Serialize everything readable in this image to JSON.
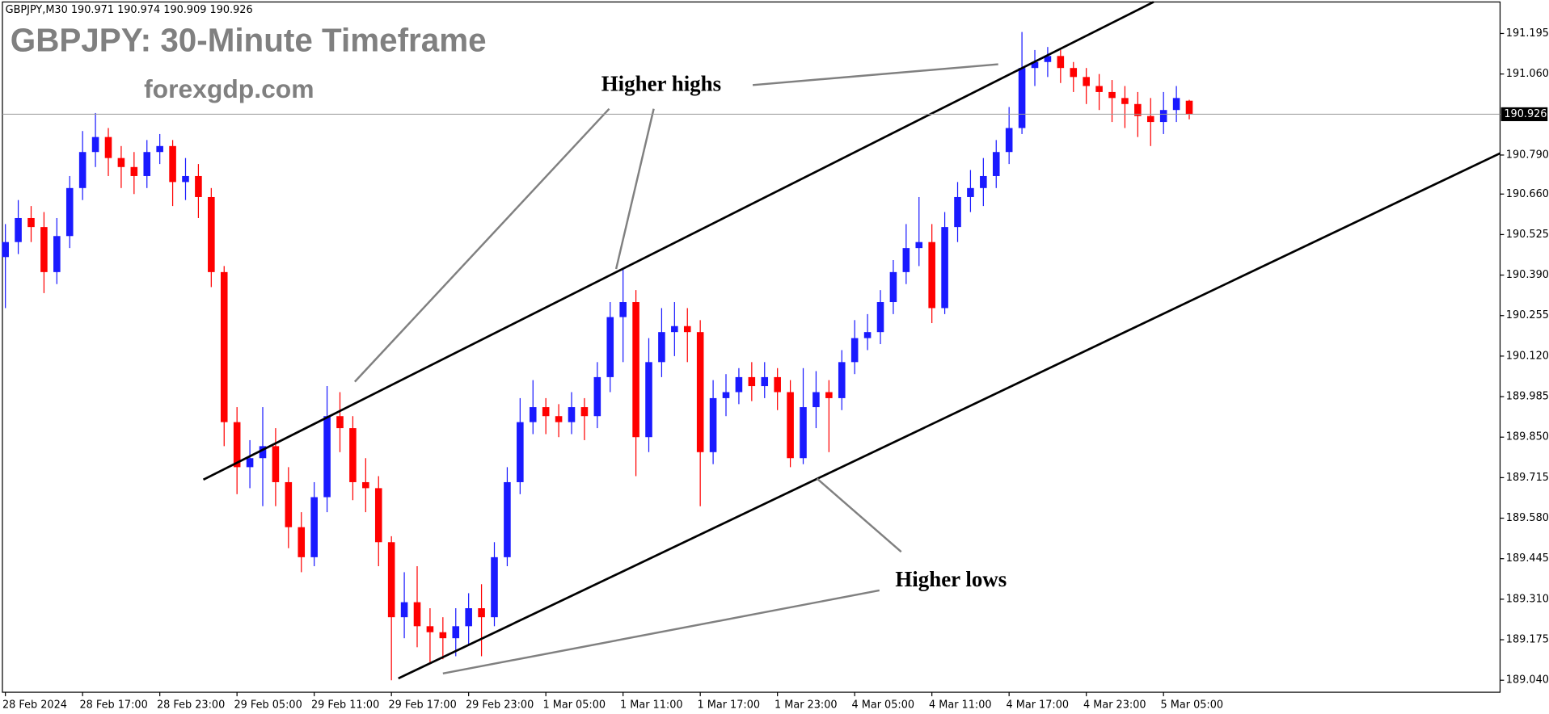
{
  "chart_data": {
    "type": "candlestick",
    "symbol": "GBPJPY,M30",
    "title": "GBPJPY: 30-Minute Timeframe",
    "subtitle": "forexgdp.com",
    "annotations": [
      "Higher highs",
      "Higher lows"
    ],
    "up_color": "#1a1aff",
    "down_color": "#ff0000",
    "ylim": [
      189.0,
      191.3
    ],
    "yticks": [
      191.195,
      {
        "value": 191.06,
        "label": "191.060"
      },
      {
        "value": 190.79,
        "label": "190.790"
      },
      {
        "value": 190.66,
        "label": "190.660"
      },
      190.525,
      {
        "value": 190.39,
        "label": "190.390"
      },
      190.255,
      {
        "value": 190.12,
        "label": "190.120"
      },
      189.985,
      {
        "value": 189.85,
        "label": "189.850"
      },
      189.715,
      {
        "value": 189.58,
        "label": "189.580"
      },
      189.445,
      {
        "value": 189.31,
        "label": "189.310"
      },
      189.175,
      {
        "value": 189.04,
        "label": "189.040"
      }
    ],
    "categories": [
      "28 Feb 2024",
      null,
      null,
      null,
      null,
      null,
      "28 Feb 17:00",
      null,
      null,
      null,
      null,
      null,
      "28 Feb 23:00",
      null,
      null,
      null,
      null,
      null,
      "29 Feb 05:00",
      null,
      null,
      null,
      null,
      null,
      "29 Feb 11:00",
      null,
      null,
      null,
      null,
      null,
      "29 Feb 17:00",
      null,
      null,
      null,
      null,
      null,
      "29 Feb 23:00",
      null,
      null,
      null,
      null,
      null,
      "1 Mar 05:00",
      null,
      null,
      null,
      null,
      null,
      "1 Mar 11:00",
      null,
      null,
      null,
      null,
      null,
      "1 Mar 17:00",
      null,
      null,
      null,
      null,
      null,
      "1 Mar 23:00",
      null,
      null,
      null,
      null,
      null,
      "4 Mar 05:00",
      null,
      null,
      null,
      null,
      null,
      "4 Mar 11:00",
      null,
      null,
      null,
      null,
      null,
      "4 Mar 17:00",
      null,
      null,
      null,
      null,
      null,
      "4 Mar 23:00",
      null,
      null,
      null,
      null,
      null,
      "5 Mar 05:00",
      null,
      null
    ],
    "open": [
      190.45,
      190.5,
      190.58,
      190.55,
      190.4,
      190.52,
      190.68,
      190.8,
      190.85,
      190.78,
      190.75,
      190.72,
      190.8,
      190.82,
      190.7,
      190.72,
      190.65,
      190.4,
      189.9,
      189.75,
      189.78,
      189.82,
      189.7,
      189.55,
      189.45,
      189.65,
      189.92,
      189.88,
      189.7,
      189.68,
      189.5,
      189.25,
      189.3,
      189.22,
      189.2,
      189.18,
      189.22,
      189.28,
      189.25,
      189.45,
      189.7,
      189.9,
      189.95,
      189.92,
      189.9,
      189.95,
      189.92,
      190.05,
      190.25,
      190.3,
      189.85,
      190.1,
      190.2,
      190.22,
      190.2,
      189.8,
      189.98,
      190.0,
      190.05,
      190.02,
      190.05,
      190.0,
      189.78,
      189.95,
      190.0,
      189.98,
      190.1,
      190.18,
      190.2,
      190.3,
      190.4,
      190.48,
      190.5,
      190.28,
      190.55,
      190.65,
      190.68,
      190.72,
      190.8,
      190.88,
      191.08,
      191.1,
      191.12,
      191.08,
      191.05,
      191.02,
      191.0,
      190.98,
      190.96,
      190.92,
      190.9,
      190.94,
      190.971
    ],
    "high": [
      190.56,
      190.64,
      190.62,
      190.6,
      190.58,
      190.72,
      190.87,
      190.93,
      190.88,
      190.82,
      190.8,
      190.84,
      190.86,
      190.84,
      190.78,
      190.76,
      190.68,
      190.42,
      189.95,
      189.84,
      189.95,
      189.88,
      189.75,
      189.6,
      189.7,
      190.02,
      190.0,
      189.92,
      189.78,
      189.72,
      189.52,
      189.4,
      189.42,
      189.28,
      189.25,
      189.28,
      189.33,
      189.36,
      189.5,
      189.75,
      189.98,
      190.04,
      189.98,
      189.96,
      190.0,
      189.98,
      190.1,
      190.3,
      190.41,
      190.34,
      190.18,
      190.28,
      190.3,
      190.28,
      190.24,
      190.04,
      190.06,
      190.08,
      190.1,
      190.1,
      190.08,
      190.04,
      190.08,
      190.07,
      190.04,
      190.14,
      190.24,
      190.26,
      190.34,
      190.44,
      190.56,
      190.65,
      190.56,
      190.6,
      190.7,
      190.74,
      190.78,
      190.84,
      190.95,
      191.2,
      191.14,
      191.15,
      191.14,
      191.1,
      191.08,
      191.06,
      191.04,
      191.02,
      191.0,
      190.98,
      191.0,
      191.02,
      190.974
    ],
    "low": [
      190.28,
      190.46,
      190.5,
      190.33,
      190.36,
      190.48,
      190.64,
      190.75,
      190.72,
      190.68,
      190.66,
      190.68,
      190.76,
      190.62,
      190.64,
      190.58,
      190.35,
      189.82,
      189.66,
      189.68,
      189.62,
      189.62,
      189.48,
      189.4,
      189.42,
      189.6,
      189.8,
      189.64,
      189.6,
      189.42,
      189.04,
      189.18,
      189.15,
      189.1,
      189.11,
      189.12,
      189.16,
      189.12,
      189.22,
      189.42,
      189.66,
      189.86,
      189.86,
      189.85,
      189.86,
      189.84,
      189.88,
      190.0,
      190.1,
      189.72,
      189.8,
      190.05,
      190.12,
      190.1,
      189.62,
      189.76,
      189.92,
      189.96,
      189.97,
      189.98,
      189.94,
      189.75,
      189.76,
      189.88,
      189.8,
      189.94,
      190.06,
      190.14,
      190.16,
      190.26,
      190.36,
      190.42,
      190.23,
      190.26,
      190.5,
      190.6,
      190.62,
      190.68,
      190.76,
      190.86,
      191.02,
      191.05,
      191.03,
      191.0,
      190.96,
      190.94,
      190.9,
      190.88,
      190.85,
      190.82,
      190.86,
      190.9,
      190.909
    ],
    "close": [
      190.5,
      190.58,
      190.55,
      190.4,
      190.52,
      190.68,
      190.8,
      190.85,
      190.78,
      190.75,
      190.72,
      190.8,
      190.82,
      190.7,
      190.72,
      190.65,
      190.4,
      189.9,
      189.75,
      189.78,
      189.82,
      189.7,
      189.55,
      189.45,
      189.65,
      189.92,
      189.88,
      189.7,
      189.68,
      189.5,
      189.25,
      189.3,
      189.22,
      189.2,
      189.18,
      189.22,
      189.28,
      189.25,
      189.45,
      189.7,
      189.9,
      189.95,
      189.92,
      189.9,
      189.95,
      189.92,
      190.05,
      190.25,
      190.3,
      189.85,
      190.1,
      190.2,
      190.22,
      190.2,
      189.8,
      189.98,
      190.0,
      190.05,
      190.02,
      190.05,
      190.0,
      189.78,
      189.95,
      190.0,
      189.98,
      190.1,
      190.18,
      190.2,
      190.3,
      190.4,
      190.48,
      190.5,
      190.28,
      190.55,
      190.65,
      190.68,
      190.72,
      190.8,
      190.88,
      191.08,
      191.1,
      191.12,
      191.08,
      191.05,
      191.02,
      191.0,
      190.98,
      190.96,
      190.92,
      190.9,
      190.94,
      190.98,
      190.926
    ]
  }
}
